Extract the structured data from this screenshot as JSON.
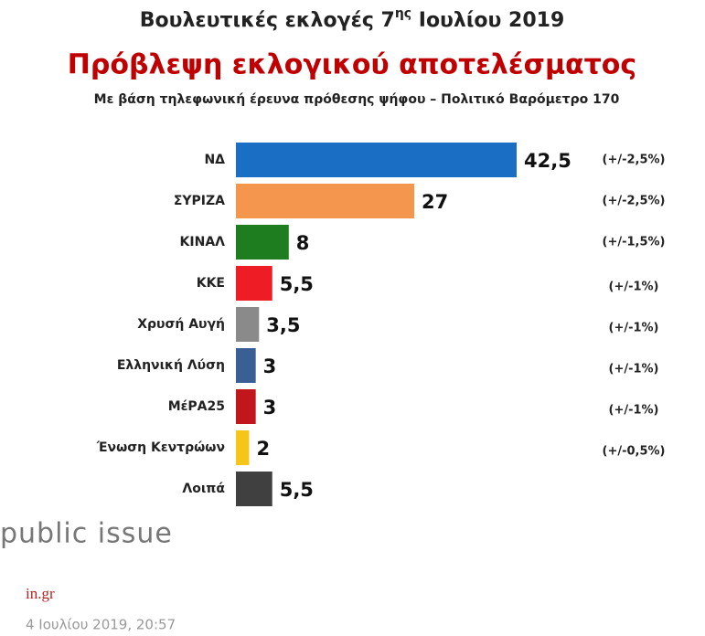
{
  "chart_data": {
    "type": "bar",
    "title": {
      "before": "Βουλευτικές εκλογές 7",
      "sup": "ης",
      "after": " Ιουλίου 2019"
    },
    "subtitle": "Πρόβλεψη εκλογικού αποτελέσματος",
    "note": "Με βάση τηλεφωνική έρευνα πρόθεσης ψήφου – Πολιτικό Βαρόμετρο 170",
    "categories": [
      "ΝΔ",
      "ΣΥΡΙΖΑ",
      "ΚΙΝΑΛ",
      "ΚΚΕ",
      "Χρυσή Αυγή",
      "Ελληνική Λύση",
      "ΜέΡΑ25",
      "Ένωση Κεντρώων",
      "Λοιπά"
    ],
    "values": [
      42.5,
      27,
      8,
      5.5,
      3.5,
      3,
      3,
      2,
      5.5
    ],
    "value_labels": [
      "42,5",
      "27",
      "8",
      "5,5",
      "3,5",
      "3",
      "3",
      "2",
      "5,5"
    ],
    "colors": [
      "#1a6fc4",
      "#f5964f",
      "#1e7d1e",
      "#ee1c24",
      "#8a8a8a",
      "#3a5f95",
      "#c0161c",
      "#f5c518",
      "#404040"
    ],
    "error_labels": [
      "(+/-2,5%)",
      "(+/-2,5%)",
      "(+/-1,5%)",
      "(+/-1%)",
      "(+/-1%)",
      "(+/-1%)",
      "(+/-1%)",
      "(+/-0,5%)",
      null
    ]
  },
  "source": {
    "brand": "public issue",
    "site": "in.gr",
    "date": "4 Ιουλίου 2019, 20:57"
  }
}
